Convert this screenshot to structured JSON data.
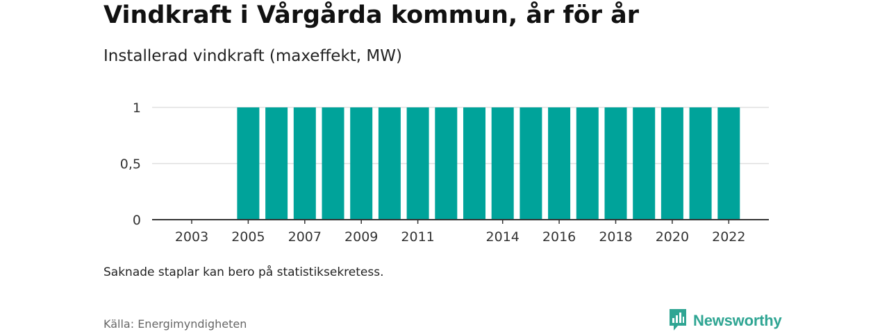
{
  "title": "Vindkraft i Vårgårda kommun, år för år",
  "subtitle": "Installerad vindkraft (maxeffekt, MW)",
  "note": "Saknade staplar kan bero på statistiksekretess.",
  "source": "Källa: Energimyndigheten",
  "brand": {
    "name": "Newsworthy",
    "icon": "newsworthy-logo-icon",
    "color": "#2fa593"
  },
  "colors": {
    "bar": "#00a39a",
    "grid": "#d9d9d9",
    "axis": "#333333"
  },
  "chart_data": {
    "type": "bar",
    "categories": [
      "2003",
      "2004",
      "2005",
      "2006",
      "2007",
      "2008",
      "2009",
      "2010",
      "2011",
      "2012",
      "2013",
      "2014",
      "2015",
      "2016",
      "2017",
      "2018",
      "2019",
      "2020",
      "2021",
      "2022"
    ],
    "values": [
      null,
      null,
      1,
      1,
      1,
      1,
      1,
      1,
      1,
      1,
      1,
      1,
      1,
      1,
      1,
      1,
      1,
      1,
      1,
      1
    ],
    "tick_labels_x": [
      "2003",
      "2005",
      "2007",
      "2009",
      "2011",
      "2014",
      "2016",
      "2018",
      "2020",
      "2022"
    ],
    "y_ticks": [
      0,
      0.5,
      1
    ],
    "y_tick_labels": [
      "0",
      "0,5",
      "1"
    ],
    "ylim": [
      0,
      1
    ],
    "grid": true,
    "xlabel": "",
    "ylabel": ""
  }
}
